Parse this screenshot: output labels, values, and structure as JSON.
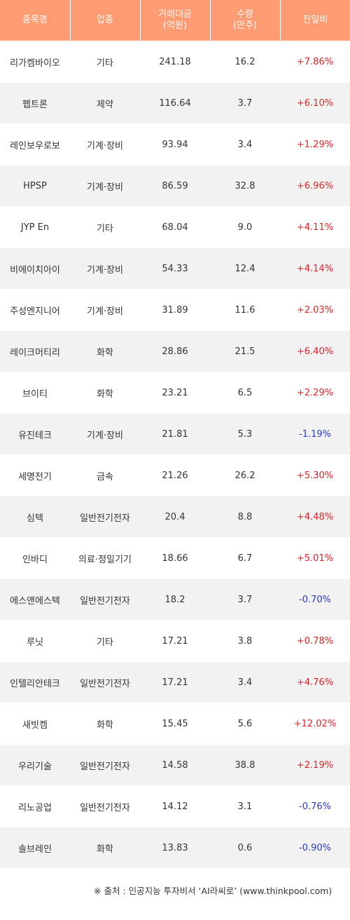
{
  "headers": [
    "종목명",
    "업종",
    "거래대금\n(억원)",
    "수량\n(만주)",
    "전일비"
  ],
  "rows": [
    {
      "name": "리가켐바이오",
      "sector": "기타",
      "amount": "241.18",
      "volume": "16.2",
      "change": "+7.86%"
    },
    {
      "name": "펩트론",
      "sector": "제약",
      "amount": "116.64",
      "volume": "3.7",
      "change": "+6.10%"
    },
    {
      "name": "레인보우로보",
      "sector": "기계·장비",
      "amount": "93.94",
      "volume": "3.4",
      "change": "+1.29%"
    },
    {
      "name": "HPSP",
      "sector": "기계·장비",
      "amount": "86.59",
      "volume": "32.8",
      "change": "+6.96%"
    },
    {
      "name": "JYP En",
      "sector": "기타",
      "amount": "68.04",
      "volume": "9.0",
      "change": "+4.11%"
    },
    {
      "name": "비에이치아이",
      "sector": "기계·장비",
      "amount": "54.33",
      "volume": "12.4",
      "change": "+4.14%"
    },
    {
      "name": "주성엔지니어",
      "sector": "기계·장비",
      "amount": "31.89",
      "volume": "11.6",
      "change": "+2.03%"
    },
    {
      "name": "레이크머티리",
      "sector": "화학",
      "amount": "28.86",
      "volume": "21.5",
      "change": "+6.40%"
    },
    {
      "name": "브이티",
      "sector": "화학",
      "amount": "23.21",
      "volume": "6.5",
      "change": "+2.29%"
    },
    {
      "name": "유진테크",
      "sector": "기계·장비",
      "amount": "21.81",
      "volume": "5.3",
      "change": "-1.19%"
    },
    {
      "name": "세명전기",
      "sector": "금속",
      "amount": "21.26",
      "volume": "26.2",
      "change": "+5.30%"
    },
    {
      "name": "심텍",
      "sector": "일반전기전자",
      "amount": "20.4",
      "volume": "8.8",
      "change": "+4.48%"
    },
    {
      "name": "인바디",
      "sector": "의료·정밀기기",
      "amount": "18.66",
      "volume": "6.7",
      "change": "+5.01%"
    },
    {
      "name": "에스앤에스텍",
      "sector": "일반전기전자",
      "amount": "18.2",
      "volume": "3.7",
      "change": "-0.70%"
    },
    {
      "name": "루닛",
      "sector": "기타",
      "amount": "17.21",
      "volume": "3.8",
      "change": "+0.78%"
    },
    {
      "name": "인텔리안테크",
      "sector": "일반전기전자",
      "amount": "17.21",
      "volume": "3.4",
      "change": "+4.76%"
    },
    {
      "name": "새빗켐",
      "sector": "화학",
      "amount": "15.45",
      "volume": "5.6",
      "change": "+12.02%"
    },
    {
      "name": "우리기술",
      "sector": "일반전기전자",
      "amount": "14.58",
      "volume": "38.8",
      "change": "+2.19%"
    },
    {
      "name": "리노공업",
      "sector": "일반전기전자",
      "amount": "14.12",
      "volume": "3.1",
      "change": "-0.76%"
    },
    {
      "name": "솔브레인",
      "sector": "화학",
      "amount": "13.83",
      "volume": "0.6",
      "change": "-0.90%"
    }
  ],
  "colors": {
    "header_bg": "#ff9c73",
    "positive": "#e0222b",
    "negative": "#2b3cc4",
    "stripe": "#f2f2f2"
  },
  "source": "※ 출처 : 인공지능 투자비서 ‘AI라씨로’ (www.thinkpool.com)"
}
